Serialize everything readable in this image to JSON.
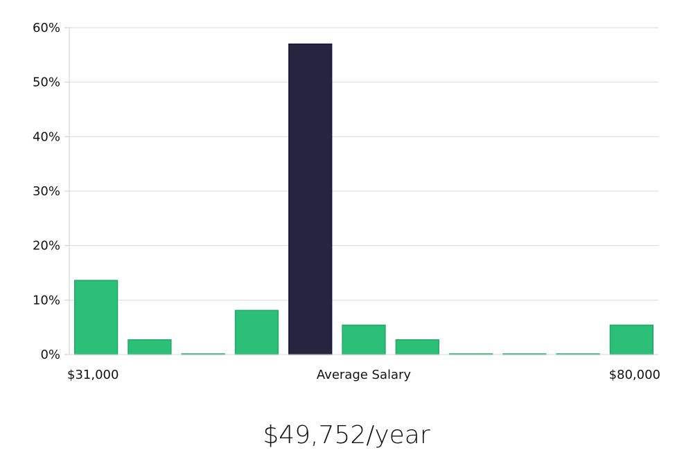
{
  "chart_data": {
    "type": "bar",
    "bins": [
      1,
      2,
      3,
      4,
      5,
      6,
      7,
      8,
      9,
      10,
      11
    ],
    "values": [
      13.6,
      2.7,
      0.1,
      8.1,
      57.0,
      5.4,
      2.7,
      0.1,
      0.1,
      0.1,
      5.4
    ],
    "highlight_bin": 5,
    "ylim": [
      0,
      60
    ],
    "yticks": [
      0,
      10,
      20,
      30,
      40,
      50,
      60
    ],
    "ytick_format": "{v}%",
    "x_left_label": "$31,000",
    "x_center_label": "Average Salary",
    "x_right_label": "$80,000",
    "grid": true,
    "colors": {
      "bar": "#2bbf77",
      "bar_border": "#23a865",
      "highlight": "#27243f",
      "highlight_border": "#1a1838",
      "grid": "#d9d9d9",
      "axis": "#cccccc"
    }
  },
  "salary_summary": "$49,752/year"
}
